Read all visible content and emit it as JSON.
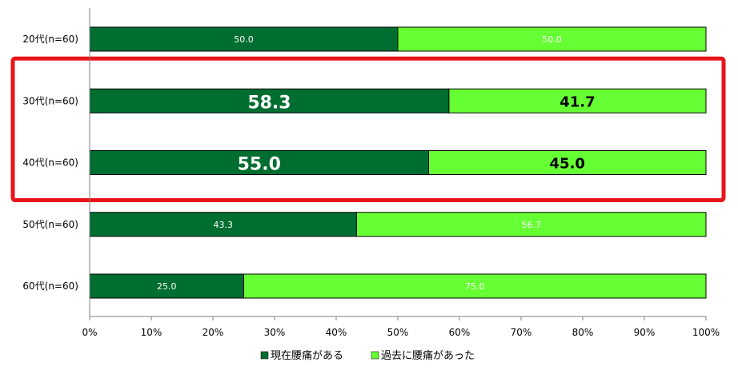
{
  "chart_data": {
    "type": "bar",
    "orientation": "horizontal",
    "stacked": true,
    "percent": true,
    "categories": [
      "20代(n=60)",
      "30代(n=60)",
      "40代(n=60)",
      "50代(n=60)",
      "60代(n=60)"
    ],
    "series": [
      {
        "name": "現在腰痛がある",
        "values": [
          50.0,
          58.3,
          55.0,
          43.3,
          25.0
        ],
        "color": "#006e31"
      },
      {
        "name": "過去に腰痛があった",
        "values": [
          50.0,
          41.7,
          45.0,
          56.7,
          75.0
        ],
        "color": "#66ff33"
      }
    ],
    "value_labels": [
      [
        "50.0",
        "58.3",
        "55.0",
        "43.3",
        "25.0"
      ],
      [
        "50.0",
        "41.7",
        "45.0",
        "56.7",
        "75.0"
      ]
    ],
    "xticks": [
      "0%",
      "10%",
      "20%",
      "30%",
      "40%",
      "50%",
      "60%",
      "70%",
      "80%",
      "90%",
      "100%"
    ],
    "xlim": [
      0,
      100
    ],
    "highlighted_categories": [
      "30代(n=60)",
      "40代(n=60)"
    ],
    "highlight_color": "#e8141b",
    "legend_position": "bottom",
    "grid": false,
    "title": "",
    "xlabel": "",
    "ylabel": ""
  }
}
